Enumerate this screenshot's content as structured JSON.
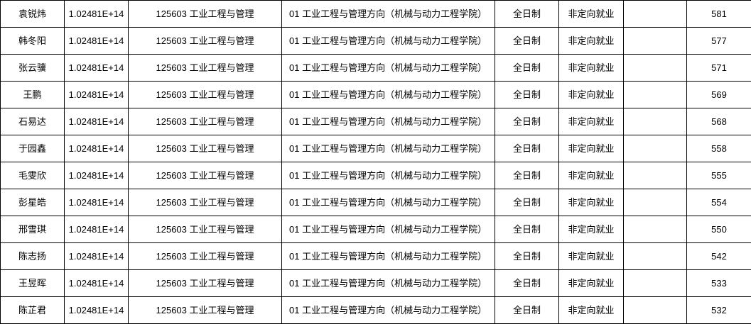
{
  "table": {
    "rows": [
      {
        "name": "袁锐炜",
        "candidate_no": "1.02481E+14",
        "major": "125603 工业工程与管理",
        "direction": "01 工业工程与管理方向（机械与动力工程学院）",
        "study_mode": "全日制",
        "employment": "非定向就业",
        "blank": "",
        "score": "581"
      },
      {
        "name": "韩冬阳",
        "candidate_no": "1.02481E+14",
        "major": "125603 工业工程与管理",
        "direction": "01 工业工程与管理方向（机械与动力工程学院）",
        "study_mode": "全日制",
        "employment": "非定向就业",
        "blank": "",
        "score": "577"
      },
      {
        "name": "张云骥",
        "candidate_no": "1.02481E+14",
        "major": "125603 工业工程与管理",
        "direction": "01 工业工程与管理方向（机械与动力工程学院）",
        "study_mode": "全日制",
        "employment": "非定向就业",
        "blank": "",
        "score": "571"
      },
      {
        "name": "王鹏",
        "candidate_no": "1.02481E+14",
        "major": "125603 工业工程与管理",
        "direction": "01 工业工程与管理方向（机械与动力工程学院）",
        "study_mode": "全日制",
        "employment": "非定向就业",
        "blank": "",
        "score": "569"
      },
      {
        "name": "石易达",
        "candidate_no": "1.02481E+14",
        "major": "125603 工业工程与管理",
        "direction": "01 工业工程与管理方向（机械与动力工程学院）",
        "study_mode": "全日制",
        "employment": "非定向就业",
        "blank": "",
        "score": "568"
      },
      {
        "name": "于园鑫",
        "candidate_no": "1.02481E+14",
        "major": "125603 工业工程与管理",
        "direction": "01 工业工程与管理方向（机械与动力工程学院）",
        "study_mode": "全日制",
        "employment": "非定向就业",
        "blank": "",
        "score": "558"
      },
      {
        "name": "毛雯欣",
        "candidate_no": "1.02481E+14",
        "major": "125603 工业工程与管理",
        "direction": "01 工业工程与管理方向（机械与动力工程学院）",
        "study_mode": "全日制",
        "employment": "非定向就业",
        "blank": "",
        "score": "555"
      },
      {
        "name": "彭星皓",
        "candidate_no": "1.02481E+14",
        "major": "125603 工业工程与管理",
        "direction": "01 工业工程与管理方向（机械与动力工程学院）",
        "study_mode": "全日制",
        "employment": "非定向就业",
        "blank": "",
        "score": "554"
      },
      {
        "name": "邢雪琪",
        "candidate_no": "1.02481E+14",
        "major": "125603 工业工程与管理",
        "direction": "01 工业工程与管理方向（机械与动力工程学院）",
        "study_mode": "全日制",
        "employment": "非定向就业",
        "blank": "",
        "score": "550"
      },
      {
        "name": "陈志扬",
        "candidate_no": "1.02481E+14",
        "major": "125603 工业工程与管理",
        "direction": "01 工业工程与管理方向（机械与动力工程学院）",
        "study_mode": "全日制",
        "employment": "非定向就业",
        "blank": "",
        "score": "542"
      },
      {
        "name": "王昱晖",
        "candidate_no": "1.02481E+14",
        "major": "125603 工业工程与管理",
        "direction": "01 工业工程与管理方向（机械与动力工程学院）",
        "study_mode": "全日制",
        "employment": "非定向就业",
        "blank": "",
        "score": "533"
      },
      {
        "name": "陈芷君",
        "candidate_no": "1.02481E+14",
        "major": "125603 工业工程与管理",
        "direction": "01 工业工程与管理方向（机械与动力工程学院）",
        "study_mode": "全日制",
        "employment": "非定向就业",
        "blank": "",
        "score": "532"
      }
    ]
  }
}
